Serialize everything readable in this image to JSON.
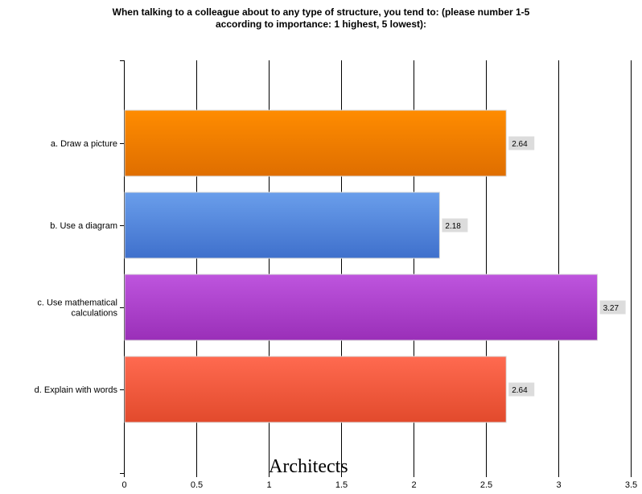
{
  "chart_data": {
    "type": "bar",
    "orientation": "horizontal",
    "title": "When talking to a colleague about to any type of structure, you tend to: (please number 1-5\naccording to importance: 1 highest, 5 lowest):",
    "categories": [
      "a. Draw a picture",
      "b. Use a diagram",
      "c. Use mathematical calculations",
      "d. Explain with words"
    ],
    "category_lines": [
      [
        "a. Draw a picture"
      ],
      [
        "b. Use a diagram"
      ],
      [
        "c. Use mathematical",
        "calculations"
      ],
      [
        "d. Explain with words"
      ]
    ],
    "values": [
      2.64,
      2.18,
      3.27,
      2.64
    ],
    "value_labels": [
      "2.64",
      "2.18",
      "3.27",
      "2.64"
    ],
    "bar_colors": [
      {
        "top": "#ff8c00",
        "bottom": "#df6e00"
      },
      {
        "top": "#6a9eeb",
        "bottom": "#3f70cc"
      },
      {
        "top": "#be55de",
        "bottom": "#9a2fb8"
      },
      {
        "top": "#ff6a50",
        "bottom": "#e24a2c"
      }
    ],
    "xlim": [
      0,
      3.5
    ],
    "xticks": [
      0,
      0.5,
      1,
      1.5,
      2,
      2.5,
      3,
      3.5
    ],
    "xtick_labels": [
      "0",
      "0.5",
      "1",
      "1.5",
      "2",
      "2.5",
      "3",
      "3.5"
    ],
    "grid": true,
    "legend": "none"
  },
  "caption": "Architects"
}
